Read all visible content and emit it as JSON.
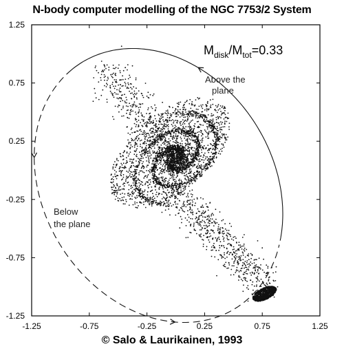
{
  "chart_data": {
    "type": "scatter",
    "title": "N-body computer modelling of the NGC 7753/2 System",
    "xlim": [
      -1.25,
      1.25
    ],
    "ylim": [
      -1.25,
      1.25
    ],
    "xticks": [
      "-1.25",
      "-0.75",
      "-0.25",
      "0.25",
      "0.75",
      "1.25"
    ],
    "yticks": [
      "1.25",
      "0.75",
      "0.25",
      "-0.25",
      "-0.75",
      "-1.25"
    ],
    "xtick_values": [
      -1.25,
      -0.75,
      -0.25,
      0.25,
      0.75,
      1.25
    ],
    "ytick_values": [
      1.25,
      0.75,
      0.25,
      -0.25,
      -0.75,
      -1.25
    ],
    "annotations": {
      "mass_ratio": {
        "base": "M",
        "sub1": "disk",
        "mid": "/M",
        "sub2": "tot",
        "tail": "=0.33"
      },
      "above_line1": "Above the",
      "above_line2": "plane",
      "below_line1": "Below",
      "below_line2": "the plane"
    },
    "main_galaxy": {
      "center": [
        0.0,
        0.1
      ],
      "spiral_arms": 2
    },
    "companion": {
      "center": [
        0.77,
        -1.06
      ]
    },
    "orbit": {
      "center": [
        -0.15,
        -0.13
      ],
      "semi_axes": [
        1.05,
        1.32
      ],
      "tilt_deg": 38,
      "solid_part": "above the plane",
      "dashed_part": "below the plane"
    },
    "grid": false,
    "legend": "none"
  },
  "credit": "© Salo & Laurikainen, 1993"
}
